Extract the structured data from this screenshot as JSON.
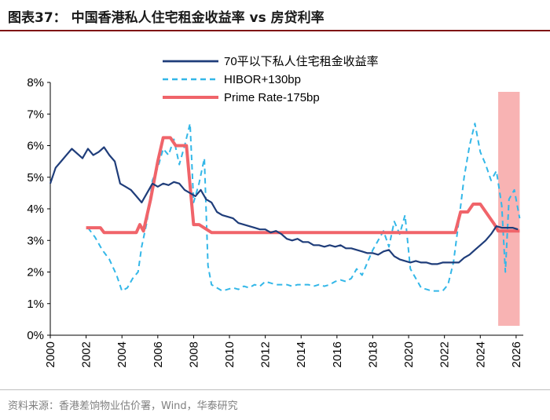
{
  "title": "图表37：  中国香港私人住宅租金收益率 vs 房贷利率",
  "source": "资料来源：香港差饷物业估价署，Wind，华泰研究",
  "colors": {
    "rent": "#1f3d7a",
    "hibor": "#33b7e8",
    "prime": "#f0646a",
    "band": "#f8b3b3",
    "accent": "#7f0f0f"
  },
  "chart_data": {
    "type": "line",
    "xlim": [
      2000,
      2026.4
    ],
    "ylim": [
      0,
      8
    ],
    "x_ticks": [
      "2000",
      "2002",
      "2004",
      "2006",
      "2008",
      "2010",
      "2012",
      "2014",
      "2016",
      "2018",
      "2020",
      "2022",
      "2024",
      "2026"
    ],
    "y_ticks": [
      "0%",
      "1%",
      "2%",
      "3%",
      "4%",
      "5%",
      "6%",
      "7%",
      "8%"
    ],
    "shaded_range": [
      2025.0,
      2026.2
    ],
    "legend_position": "top-center",
    "series": [
      {
        "name": "70平以下私人住宅租金收益率",
        "style": "solid",
        "x": [
          2000.0,
          2000.3,
          2000.6,
          2000.9,
          2001.2,
          2001.5,
          2001.8,
          2002.1,
          2002.4,
          2002.7,
          2003.0,
          2003.3,
          2003.6,
          2003.9,
          2004.2,
          2004.5,
          2004.8,
          2005.1,
          2005.4,
          2005.7,
          2006.0,
          2006.3,
          2006.6,
          2006.9,
          2007.2,
          2007.5,
          2007.8,
          2008.1,
          2008.4,
          2008.7,
          2009.0,
          2009.3,
          2009.6,
          2009.9,
          2010.2,
          2010.5,
          2010.8,
          2011.1,
          2011.4,
          2011.7,
          2012.0,
          2012.3,
          2012.6,
          2012.9,
          2013.2,
          2013.5,
          2013.8,
          2014.1,
          2014.4,
          2014.7,
          2015.0,
          2015.3,
          2015.6,
          2015.9,
          2016.2,
          2016.5,
          2016.8,
          2017.1,
          2017.4,
          2017.7,
          2018.0,
          2018.3,
          2018.6,
          2018.9,
          2019.2,
          2019.5,
          2019.8,
          2020.1,
          2020.4,
          2020.7,
          2021.0,
          2021.3,
          2021.6,
          2021.9,
          2022.2,
          2022.5,
          2022.8,
          2023.1,
          2023.4,
          2023.7,
          2024.0,
          2024.3,
          2024.6,
          2024.9,
          2025.2,
          2025.5,
          2025.8,
          2026.1
        ],
        "values": [
          4.8,
          5.3,
          5.5,
          5.7,
          5.9,
          5.75,
          5.6,
          5.9,
          5.7,
          5.8,
          5.95,
          5.7,
          5.5,
          4.8,
          4.7,
          4.6,
          4.4,
          4.2,
          4.5,
          4.8,
          4.7,
          4.8,
          4.75,
          4.85,
          4.8,
          4.6,
          4.5,
          4.4,
          4.6,
          4.3,
          4.2,
          3.9,
          3.8,
          3.75,
          3.7,
          3.55,
          3.5,
          3.45,
          3.4,
          3.35,
          3.35,
          3.25,
          3.3,
          3.2,
          3.05,
          3.0,
          3.05,
          2.95,
          2.95,
          2.85,
          2.85,
          2.8,
          2.85,
          2.8,
          2.85,
          2.75,
          2.75,
          2.7,
          2.65,
          2.6,
          2.6,
          2.55,
          2.65,
          2.7,
          2.5,
          2.4,
          2.35,
          2.3,
          2.35,
          2.3,
          2.3,
          2.25,
          2.25,
          2.3,
          2.3,
          2.3,
          2.3,
          2.45,
          2.55,
          2.7,
          2.85,
          3.0,
          3.2,
          3.45,
          3.4,
          3.4,
          3.4,
          3.35
        ]
      },
      {
        "name": "HIBOR+130bp",
        "style": "dashed",
        "x": [
          2002.1,
          2002.5,
          2002.9,
          2003.3,
          2003.7,
          2004.0,
          2004.3,
          2004.6,
          2004.9,
          2005.1,
          2005.4,
          2005.7,
          2006.0,
          2006.3,
          2006.6,
          2006.9,
          2007.2,
          2007.5,
          2007.8,
          2008.0,
          2008.3,
          2008.6,
          2008.8,
          2009.0,
          2009.3,
          2009.6,
          2009.9,
          2010.2,
          2010.5,
          2010.8,
          2011.1,
          2011.4,
          2011.7,
          2012.0,
          2012.3,
          2012.6,
          2012.9,
          2013.2,
          2013.5,
          2013.8,
          2014.1,
          2014.4,
          2014.7,
          2015.0,
          2015.3,
          2015.6,
          2015.9,
          2016.2,
          2016.5,
          2016.8,
          2017.1,
          2017.4,
          2017.7,
          2018.0,
          2018.3,
          2018.6,
          2018.9,
          2019.2,
          2019.5,
          2019.8,
          2020.1,
          2020.4,
          2020.7,
          2021.0,
          2021.3,
          2021.6,
          2021.9,
          2022.2,
          2022.5,
          2022.8,
          2023.1,
          2023.4,
          2023.7,
          2024.0,
          2024.3,
          2024.6,
          2024.9,
          2025.2,
          2025.4,
          2025.6,
          2025.9,
          2026.2
        ],
        "values": [
          3.4,
          3.1,
          2.7,
          2.4,
          1.9,
          1.4,
          1.5,
          1.8,
          2.0,
          2.8,
          3.6,
          4.9,
          5.3,
          5.9,
          5.7,
          6.2,
          5.4,
          6.0,
          6.7,
          4.2,
          4.8,
          5.6,
          2.2,
          1.6,
          1.5,
          1.4,
          1.45,
          1.5,
          1.45,
          1.55,
          1.5,
          1.6,
          1.55,
          1.7,
          1.65,
          1.6,
          1.6,
          1.6,
          1.55,
          1.6,
          1.6,
          1.6,
          1.55,
          1.6,
          1.55,
          1.6,
          1.7,
          1.75,
          1.7,
          1.8,
          2.1,
          1.9,
          2.3,
          2.7,
          3.0,
          3.3,
          2.8,
          3.6,
          3.2,
          3.8,
          2.1,
          1.8,
          1.5,
          1.45,
          1.4,
          1.4,
          1.4,
          1.6,
          2.3,
          3.6,
          5.0,
          6.0,
          6.7,
          5.8,
          5.4,
          4.9,
          5.2,
          4.1,
          2.0,
          4.3,
          4.6,
          3.7
        ]
      },
      {
        "name": "Prime Rate-175bp",
        "style": "solid-thick",
        "x": [
          2002.0,
          2002.8,
          2003.0,
          2004.8,
          2005.0,
          2005.2,
          2005.6,
          2006.0,
          2006.3,
          2006.7,
          2007.0,
          2007.6,
          2008.0,
          2008.3,
          2009.0,
          2022.6,
          2022.9,
          2023.3,
          2023.6,
          2024.0,
          2024.8,
          2025.0,
          2026.2
        ],
        "values": [
          3.4,
          3.4,
          3.25,
          3.25,
          3.5,
          3.3,
          4.3,
          5.5,
          6.25,
          6.25,
          6.0,
          6.0,
          3.5,
          3.5,
          3.25,
          3.25,
          3.9,
          3.9,
          4.15,
          4.15,
          3.5,
          3.3,
          3.3
        ]
      }
    ]
  }
}
